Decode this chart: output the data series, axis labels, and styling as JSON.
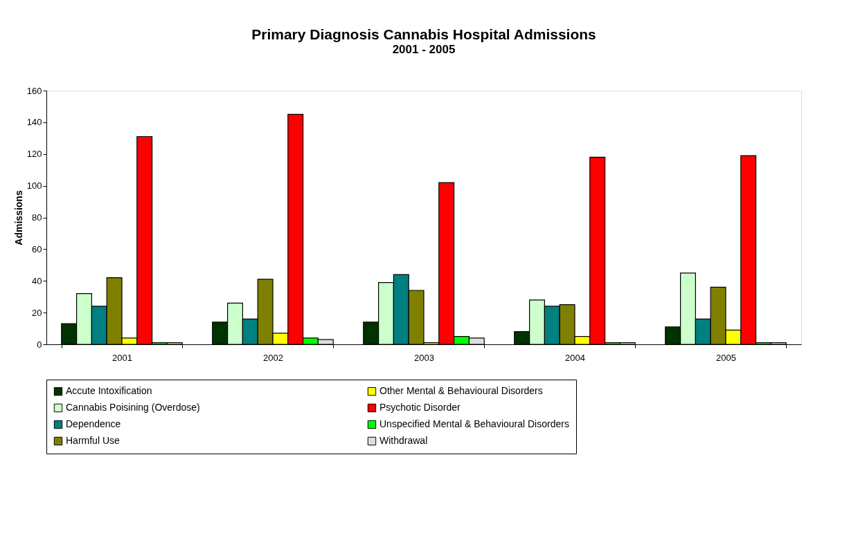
{
  "chart_data": {
    "type": "bar",
    "title": "Primary Diagnosis Cannabis Hospital Admissions",
    "subtitle": "2001 - 2005",
    "ylabel": "Admissions",
    "categories": [
      "2001",
      "2002",
      "2003",
      "2004",
      "2005"
    ],
    "series": [
      {
        "name": "Accute Intoxification",
        "color": "#003300",
        "values": [
          13,
          14,
          14,
          8,
          11
        ]
      },
      {
        "name": "Cannabis Poisining (Overdose)",
        "color": "#ccffcc",
        "values": [
          32,
          26,
          39,
          28,
          45
        ]
      },
      {
        "name": "Dependence",
        "color": "#008080",
        "values": [
          24,
          16,
          44,
          24,
          16
        ]
      },
      {
        "name": "Harmful Use",
        "color": "#808000",
        "values": [
          42,
          41,
          34,
          25,
          36
        ]
      },
      {
        "name": "Other Mental & Behavioural Disorders",
        "color": "#ffff00",
        "values": [
          4,
          7,
          1,
          5,
          9
        ]
      },
      {
        "name": "Psychotic Disorder",
        "color": "#ff0000",
        "values": [
          131,
          145,
          102,
          118,
          119
        ]
      },
      {
        "name": "Unspecified Mental & Behavioural Disorders",
        "color": "#00ff00",
        "values": [
          1,
          4,
          5,
          1,
          1
        ]
      },
      {
        "name": "Withdrawal",
        "color": "#dddddd",
        "values": [
          1,
          3,
          4,
          1,
          1
        ]
      }
    ],
    "ylim": [
      0,
      160
    ],
    "yticks": [
      0,
      20,
      40,
      60,
      80,
      100,
      120,
      140,
      160
    ],
    "grid": false,
    "legend": "bottom"
  }
}
